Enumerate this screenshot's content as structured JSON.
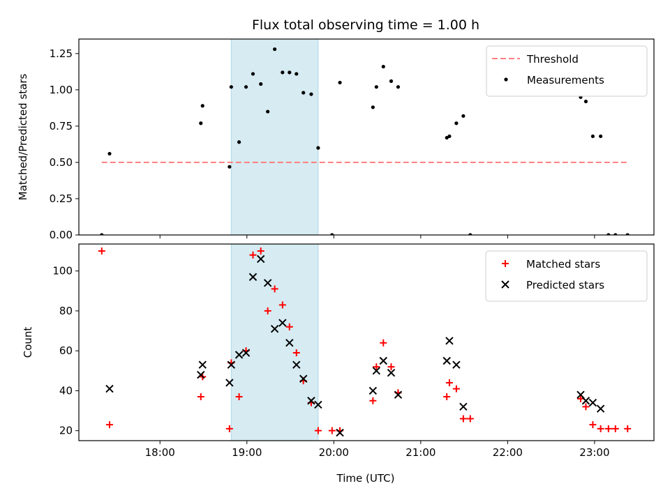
{
  "chart_data": {
    "type": "scatter",
    "title": "Flux total observing time = 1.00 h",
    "xlabel": "Time (UTC)",
    "xlim": [
      17.0667,
      23.6833
    ],
    "xticks": [
      {
        "v": 18,
        "label": "18:00"
      },
      {
        "v": 19,
        "label": "19:00"
      },
      {
        "v": 20,
        "label": "20:00"
      },
      {
        "v": 21,
        "label": "21:00"
      },
      {
        "v": 22,
        "label": "22:00"
      },
      {
        "v": 23,
        "label": "23:00"
      }
    ],
    "highlight_span": [
      18.82,
      19.82
    ],
    "highlight_color": "#add8e6",
    "panels": [
      {
        "ylabel": "Matched/Predicted stars",
        "ylim": [
          0,
          1.35
        ],
        "yticks": [
          {
            "v": 0,
            "label": "0.00"
          },
          {
            "v": 0.25,
            "label": "0.25"
          },
          {
            "v": 0.5,
            "label": "0.50"
          },
          {
            "v": 0.75,
            "label": "0.75"
          },
          {
            "v": 1.0,
            "label": "1.00"
          },
          {
            "v": 1.25,
            "label": "1.25"
          }
        ],
        "legend": {
          "placement": "top-right"
        },
        "threshold": {
          "name": "Threshold",
          "value": 0.5,
          "x_range": [
            17.33,
            23.38
          ],
          "color": "#ff7f7f"
        },
        "series": [
          {
            "name": "Measurements",
            "marker": "dot",
            "color": "#000000",
            "x": [
              17.33,
              17.42,
              18.47,
              18.49,
              18.8,
              18.82,
              18.91,
              18.99,
              19.07,
              19.16,
              19.24,
              19.32,
              19.41,
              19.49,
              19.57,
              19.65,
              19.74,
              19.82,
              19.98,
              20.07,
              20.45,
              20.49,
              20.57,
              20.66,
              20.74,
              21.3,
              21.33,
              21.41,
              21.49,
              21.57,
              22.84,
              22.9,
              22.98,
              23.07,
              23.16,
              23.24,
              23.38
            ],
            "y": [
              0.0,
              0.56,
              0.77,
              0.89,
              0.47,
              1.02,
              0.64,
              1.02,
              1.11,
              1.04,
              0.85,
              1.28,
              1.12,
              1.12,
              1.11,
              0.98,
              0.97,
              0.6,
              0.0,
              1.05,
              0.88,
              1.02,
              1.16,
              1.06,
              1.02,
              0.67,
              0.68,
              0.77,
              0.82,
              0.0,
              0.95,
              0.92,
              0.68,
              0.68,
              0.0,
              0.0,
              0.0
            ]
          }
        ]
      },
      {
        "ylabel": "Count",
        "ylim": [
          15,
          113.5
        ],
        "yticks": [
          {
            "v": 20,
            "label": "20"
          },
          {
            "v": 40,
            "label": "40"
          },
          {
            "v": 60,
            "label": "60"
          },
          {
            "v": 80,
            "label": "80"
          },
          {
            "v": 100,
            "label": "100"
          }
        ],
        "legend": {
          "placement": "top-right"
        },
        "series": [
          {
            "name": "Matched stars",
            "marker": "plus",
            "color": "#ff0000",
            "x": [
              17.33,
              17.42,
              18.47,
              18.49,
              18.8,
              18.82,
              18.91,
              18.99,
              19.07,
              19.16,
              19.24,
              19.32,
              19.41,
              19.49,
              19.57,
              19.65,
              19.74,
              19.82,
              19.98,
              20.07,
              20.45,
              20.49,
              20.57,
              20.66,
              20.74,
              21.3,
              21.33,
              21.41,
              21.49,
              21.57,
              22.84,
              22.9,
              22.98,
              23.07,
              23.16,
              23.24,
              23.38
            ],
            "y": [
              110,
              23,
              37,
              47,
              21,
              54,
              37,
              60,
              108,
              110,
              80,
              91,
              83,
              72,
              59,
              45,
              34,
              20,
              20,
              20,
              35,
              52,
              64,
              52,
              39,
              37,
              44,
              41,
              26,
              26,
              36,
              32,
              23,
              21,
              21,
              21,
              21
            ]
          },
          {
            "name": "Predicted stars",
            "marker": "x",
            "color": "#000000",
            "x": [
              17.42,
              18.47,
              18.49,
              18.8,
              18.82,
              18.91,
              18.99,
              19.07,
              19.16,
              19.24,
              19.32,
              19.41,
              19.49,
              19.57,
              19.65,
              19.74,
              19.82,
              20.07,
              20.45,
              20.49,
              20.57,
              20.66,
              20.74,
              21.3,
              21.33,
              21.41,
              21.49,
              22.84,
              22.9,
              22.98,
              23.07
            ],
            "y": [
              41,
              48,
              53,
              44,
              53,
              58,
              59,
              97,
              106,
              94,
              71,
              74,
              64,
              53,
              46,
              35,
              33,
              19,
              40,
              50,
              55,
              49,
              38,
              55,
              65,
              53,
              32,
              38,
              35,
              34,
              31
            ]
          }
        ]
      }
    ]
  }
}
